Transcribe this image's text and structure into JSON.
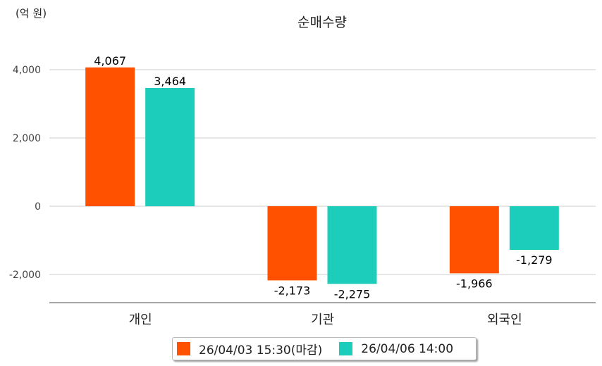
{
  "chart_data": {
    "type": "bar",
    "title": "순매수량",
    "unit_label": "(억 원)",
    "categories": [
      "개인",
      "기관",
      "외국인"
    ],
    "series": [
      {
        "name": "26/04/03 15:30(마감)",
        "color": "#ff5100",
        "values": [
          4067,
          -2173,
          -1966
        ],
        "labels": [
          "4,067",
          "-2,173",
          "-1,966"
        ]
      },
      {
        "name": "26/04/06 14:00",
        "color": "#1ccdbb",
        "values": [
          3464,
          -2275,
          -1279
        ],
        "labels": [
          "3,464",
          "-2,275",
          "-1,279"
        ]
      }
    ],
    "yticks": [
      4000,
      2000,
      0,
      -2000
    ],
    "ytick_labels": [
      "4,000",
      "2,000",
      "0",
      "-2,000"
    ],
    "ylim": [
      -2825,
      5000
    ],
    "grid": true,
    "legend_position": "bottom"
  }
}
